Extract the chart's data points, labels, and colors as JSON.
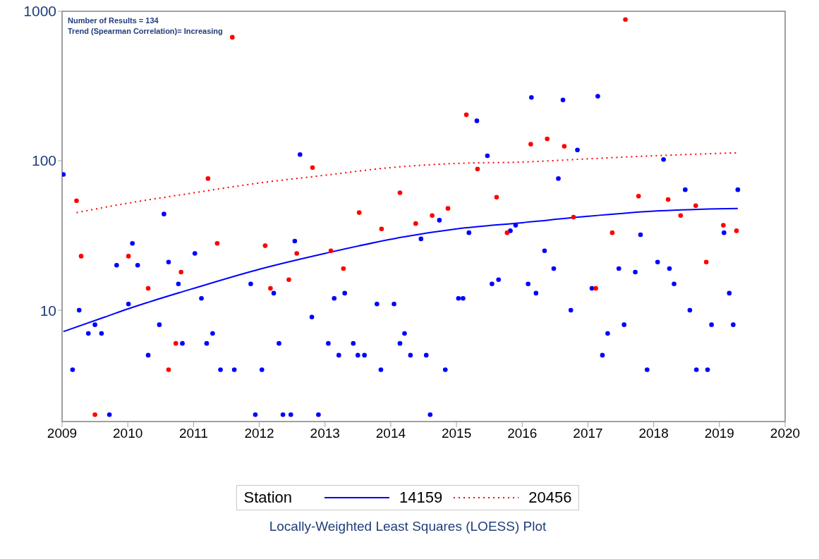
{
  "chart_data": {
    "type": "scatter",
    "legend_title": "Station",
    "legend": "bottom",
    "log": "y",
    "xlim": [
      2009,
      2020
    ],
    "xticks": [
      2009,
      2010,
      2011,
      2012,
      2013,
      2014,
      2015,
      2016,
      2017,
      2018,
      2019,
      2020
    ],
    "ylim": [
      1.8,
      1000
    ],
    "yticks": [
      10,
      100,
      1000
    ],
    "annotations": [
      "Number of Results = 134",
      "Trend (Spearman Correlation)= Increasing",
      "Locally-Weighted Least Squares (LOESS) Plot"
    ],
    "series": [
      {
        "name": "14159",
        "type": "line",
        "color": "#0000ff",
        "line_style": "solid",
        "marker": "none",
        "x": [
          2009.02,
          2009.65,
          2010,
          2010.31,
          2011,
          2012,
          2013,
          2014.2,
          2015,
          2016,
          2017,
          2018,
          2019.28
        ],
        "values": [
          7.2,
          9,
          10.2,
          11.3,
          14,
          18.8,
          24,
          31,
          35,
          38.5,
          42.5,
          46,
          48
        ]
      },
      {
        "name": "20456",
        "type": "line",
        "color": "#ff0000",
        "line_style": "dotted",
        "marker": "none",
        "x": [
          2009.22,
          2010,
          2011,
          2012,
          2013,
          2014,
          2015,
          2016,
          2017,
          2018,
          2019.26
        ],
        "values": [
          45,
          52,
          61,
          71,
          80,
          90,
          96,
          98,
          103,
          108,
          113
        ]
      },
      {
        "color": "#0000ff",
        "marker": "circle",
        "x": [
          2009.02,
          2009.16,
          2009.26,
          2009.4,
          2009.5,
          2009.6,
          2009.72,
          2009.83,
          2010.01,
          2010.07,
          2010.15,
          2010.31,
          2010.48,
          2010.55,
          2010.62,
          2010.77,
          2010.83,
          2011.02,
          2011.12,
          2011.2,
          2011.29,
          2011.41,
          2011.62,
          2011.87,
          2011.94,
          2012.04,
          2012.22,
          2012.3,
          2012.36,
          2012.48,
          2012.54,
          2012.62,
          2012.8,
          2012.9,
          2013.05,
          2013.14,
          2013.21,
          2013.3,
          2013.43,
          2013.5,
          2013.6,
          2013.79,
          2013.85,
          2014.05,
          2014.14,
          2014.21,
          2014.3,
          2014.46,
          2014.54,
          2014.6,
          2014.74,
          2014.83,
          2015.03,
          2015.1,
          2015.19,
          2015.31,
          2015.47,
          2015.54,
          2015.64,
          2015.82,
          2015.9,
          2016.09,
          2016.14,
          2016.21,
          2016.34,
          2016.48,
          2016.55,
          2016.62,
          2016.74,
          2016.84,
          2017.06,
          2017.15,
          2017.22,
          2017.3,
          2017.47,
          2017.55,
          2017.72,
          2017.8,
          2017.9,
          2018.06,
          2018.15,
          2018.24,
          2018.31,
          2018.48,
          2018.55,
          2018.65,
          2018.82,
          2018.88,
          2019.07,
          2019.15,
          2019.21,
          2019.28
        ],
        "values": [
          81,
          4,
          10,
          7,
          8,
          7,
          2,
          20,
          11,
          28,
          20,
          5,
          8,
          44,
          21,
          15,
          6,
          24,
          12,
          6,
          7,
          4,
          4,
          15,
          2,
          4,
          13,
          6,
          2,
          2,
          29,
          110,
          9,
          2,
          6,
          12,
          5,
          13,
          6,
          5,
          5,
          11,
          4,
          11,
          6,
          7,
          5,
          30,
          5,
          2,
          40,
          4,
          12,
          12,
          33,
          185,
          108,
          15,
          16,
          34,
          37,
          15,
          265,
          13,
          25,
          19,
          76,
          255,
          10,
          118,
          14,
          270,
          5,
          7,
          19,
          8,
          18,
          32,
          4,
          21,
          102,
          19,
          15,
          64,
          10,
          4,
          4,
          8,
          33,
          13,
          8,
          64
        ]
      },
      {
        "color": "#ff0000",
        "marker": "circle",
        "x": [
          2009.22,
          2009.29,
          2009.5,
          2010.01,
          2010.31,
          2010.62,
          2010.73,
          2010.81,
          2011.22,
          2011.36,
          2011.59,
          2012.09,
          2012.17,
          2012.45,
          2012.57,
          2012.81,
          2013.09,
          2013.28,
          2013.52,
          2013.86,
          2014.14,
          2014.38,
          2014.63,
          2014.87,
          2015.15,
          2015.32,
          2015.61,
          2015.77,
          2016.13,
          2016.38,
          2016.64,
          2016.78,
          2017.12,
          2017.37,
          2017.57,
          2017.77,
          2018.22,
          2018.41,
          2018.64,
          2018.8,
          2019.06,
          2019.26
        ],
        "values": [
          54,
          23,
          2,
          23,
          14,
          4,
          6,
          18,
          76,
          28,
          670,
          27,
          14,
          16,
          24,
          90,
          25,
          19,
          45,
          35,
          61,
          38,
          43,
          48,
          203,
          88,
          57,
          33,
          129,
          140,
          125,
          42,
          14,
          33,
          880,
          58,
          55,
          43,
          50,
          21,
          37,
          34
        ]
      }
    ]
  }
}
